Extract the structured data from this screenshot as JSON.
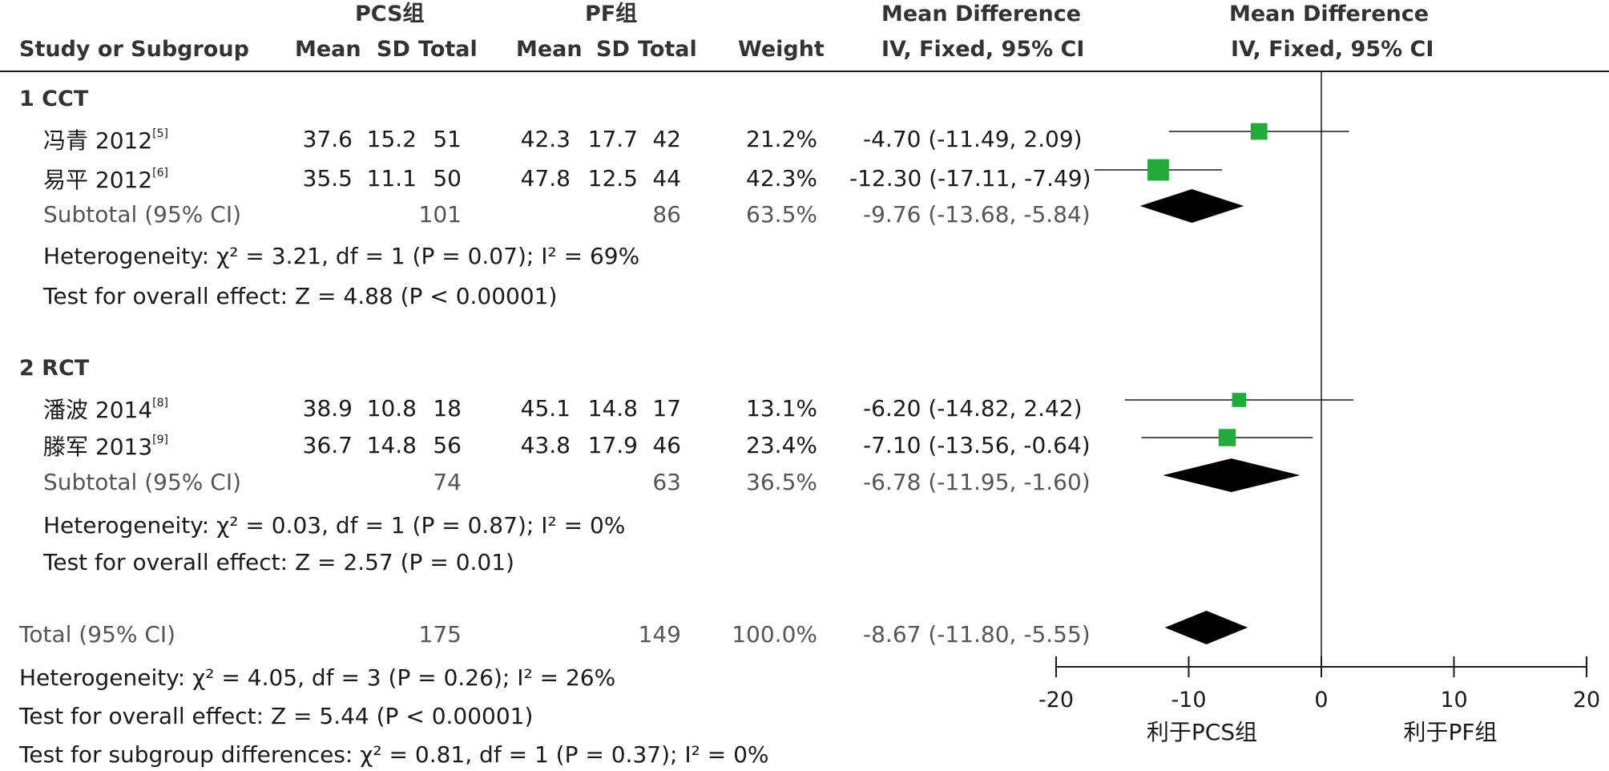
{
  "header": {
    "group1": "PCS组",
    "group2": "PF组",
    "md_title": "Mean Difference",
    "md_title2": "Mean Difference",
    "study_col": "Study or Subgroup",
    "g1_mean": "Mean",
    "g1_sd": "SD",
    "g1_total": "Total",
    "g2_mean": "Mean",
    "g2_sd": "SD",
    "g2_total": "Total",
    "weight": "Weight",
    "md_sub": "IV, Fixed, 95% CI",
    "md_sub2": "IV, Fixed, 95% CI"
  },
  "subgroups": [
    {
      "label": "1  CCT",
      "studies": [
        {
          "name": "冯青 2012",
          "ref": "[5]",
          "m1": "37.6",
          "sd1": "15.2",
          "n1": "51",
          "m2": "42.3",
          "sd2": "17.7",
          "n2": "42",
          "weight": "21.2%",
          "ci": "-4.70 (-11.49, 2.09)"
        },
        {
          "name": "易平 2012",
          "ref": "[6]",
          "m1": "35.5",
          "sd1": "11.1",
          "n1": "50",
          "m2": "47.8",
          "sd2": "12.5",
          "n2": "44",
          "weight": "42.3%",
          "ci": "-12.30 (-17.11, -7.49)"
        }
      ],
      "subtotal": {
        "label": "Subtotal (95% CI)",
        "n1": "101",
        "n2": "86",
        "weight": "63.5%",
        "ci": "-9.76 (-13.68, -5.84)"
      },
      "heterogeneity": "Heterogeneity: χ² = 3.21, df = 1 (P = 0.07); I² = 69%",
      "overall": "Test for overall effect: Z = 4.88 (P < 0.00001)"
    },
    {
      "label": "2  RCT",
      "studies": [
        {
          "name": "潘波 2014",
          "ref": "[8]",
          "m1": "38.9",
          "sd1": "10.8",
          "n1": "18",
          "m2": "45.1",
          "sd2": "14.8",
          "n2": "17",
          "weight": "13.1%",
          "ci": "-6.20 (-14.82, 2.42)"
        },
        {
          "name": "滕军 2013",
          "ref": "[9]",
          "m1": "36.7",
          "sd1": "14.8",
          "n1": "56",
          "m2": "43.8",
          "sd2": "17.9",
          "n2": "46",
          "weight": "23.4%",
          "ci": "-7.10 (-13.56, -0.64)"
        }
      ],
      "subtotal": {
        "label": "Subtotal (95% CI)",
        "n1": "74",
        "n2": "63",
        "weight": "36.5%",
        "ci": "-6.78 (-11.95, -1.60)"
      },
      "heterogeneity": "Heterogeneity: χ² = 0.03, df = 1 (P = 0.87); I² = 0%",
      "overall": "Test for overall effect: Z = 2.57 (P = 0.01)"
    }
  ],
  "total": {
    "label": "Total (95% CI)",
    "n1": "175",
    "n2": "149",
    "weight": "100.0%",
    "ci": "-8.67 (-11.80, -5.55)"
  },
  "footer": {
    "heterogeneity": "Heterogeneity: χ² = 4.05, df = 3 (P = 0.26); I² = 26%",
    "overall": "Test for overall effect: Z = 5.44 (P < 0.00001)",
    "subgroup_diff": "Test for subgroup differences: χ² = 0.81, df = 1 (P = 0.37); I² = 0%"
  },
  "chart_data": {
    "type": "forest",
    "xlim": [
      -20,
      20
    ],
    "ticks": [
      "-20",
      "-10",
      "0",
      "10",
      "20"
    ],
    "tick_values": [
      -20,
      -10,
      0,
      10,
      20
    ],
    "favours_left": "利于PCS组",
    "favours_right": "利于PF组",
    "marker_color": "#22aa3a",
    "studies": [
      {
        "name": "冯青 2012",
        "md": -4.7,
        "lo": -11.49,
        "hi": 2.09,
        "weight": 21.2
      },
      {
        "name": "易平 2012",
        "md": -12.3,
        "lo": -17.11,
        "hi": -7.49,
        "weight": 42.3
      },
      {
        "name": "潘波 2014",
        "md": -6.2,
        "lo": -14.82,
        "hi": 2.42,
        "weight": 13.1
      },
      {
        "name": "滕军 2013",
        "md": -7.1,
        "lo": -13.56,
        "hi": -0.64,
        "weight": 23.4
      }
    ],
    "diamonds": [
      {
        "name": "Subtotal CCT",
        "md": -9.76,
        "lo": -13.68,
        "hi": -5.84
      },
      {
        "name": "Subtotal RCT",
        "md": -6.78,
        "lo": -11.95,
        "hi": -1.6
      },
      {
        "name": "Total",
        "md": -8.67,
        "lo": -11.8,
        "hi": -5.55
      }
    ]
  }
}
